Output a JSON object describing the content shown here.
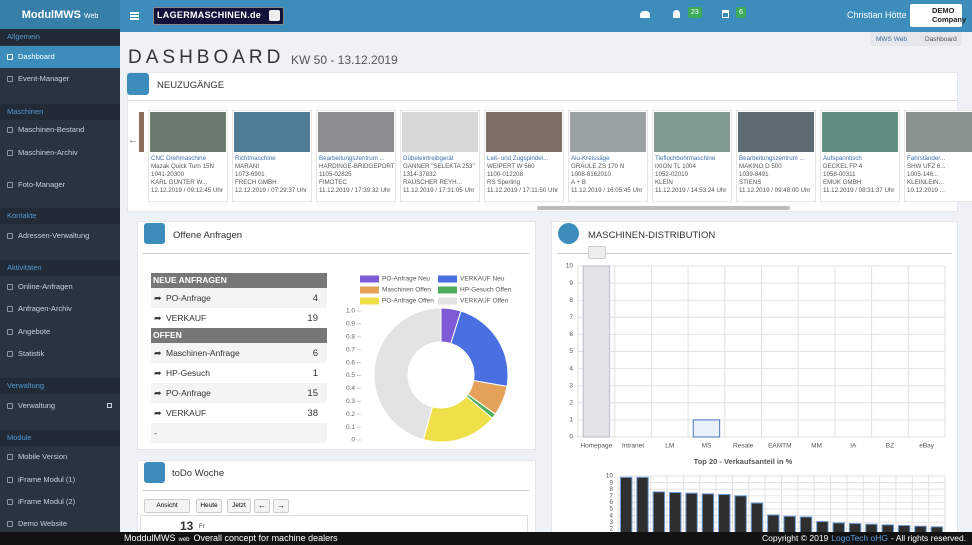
{
  "brand": {
    "name": "ModulMWS",
    "suffix": "Web"
  },
  "sidebar": [
    {
      "section": "Allgemein",
      "items": [
        "Dashboard",
        "Event-Manager"
      ]
    },
    {
      "section": "Maschinen",
      "items": [
        "Maschinen-Bestand",
        "Maschinen-Archiv",
        "Foto-Manager"
      ]
    },
    {
      "section": "Kontakte",
      "items": [
        "Adressen-Verwaltung"
      ]
    },
    {
      "section": "Aktivitäten",
      "items": [
        "Online-Anfragen",
        "Anfragen-Archiv",
        "Angebote",
        "Statistik"
      ]
    },
    {
      "section": "Verwaltung",
      "items": [
        "Verwaltung"
      ]
    },
    {
      "section": "Module",
      "items": [
        "Mobile Version",
        "iFrame Modul (1)",
        "iFrame Modul (2)",
        "Demo Website"
      ]
    }
  ],
  "topbar": {
    "logo": "LAGERMASCHINEN.de",
    "notifications": 23,
    "tasks": 6,
    "user": "Christian Hötte",
    "company_lines": [
      "DEMO",
      "Company"
    ]
  },
  "breadcrumb": [
    "MWS Web",
    "Dashboard"
  ],
  "header": {
    "title": "DASHBOARD",
    "subtitle": "KW 50 - 13.12.2019"
  },
  "neuzugaenge": {
    "title": "NEUZUGÄNGE",
    "cards": [
      {
        "lines": [
          "CNC Drehmaschine",
          "Mazak Quick Turn 15N",
          "1041-20300",
          "KARL GÜNTER W...",
          "12.12.2019 / 09:12:45 Uhr"
        ]
      },
      {
        "lines": [
          "Richtmaschine",
          "MARANI",
          "1073-6901",
          "FRECH GMBH",
          "12.12.2019 / 07:29:37 Uhr"
        ]
      },
      {
        "lines": [
          "Bearbeitungszentrum ...",
          "HARDINGE-BRIDGEPORT V...",
          "1105-02825",
          "FIMOTEC",
          "11.12.2019 / 17:39:32 Uhr"
        ]
      },
      {
        "lines": [
          "Dübeleintreibgerät",
          "GANNER \"SELEKTA 253\"",
          "1314-37832",
          "RAUSCHER REYH...",
          "11.12.2019 / 17:31:05 Uhr"
        ]
      },
      {
        "lines": [
          "Leit- und Zugspindel...",
          "WEIPERT W 560",
          "1100-012208",
          "RS Sperling",
          "11.12.2019 / 17:11:50 Uhr"
        ]
      },
      {
        "lines": [
          "Alu-Kreissäge",
          "GRAULE ZS 170 N",
          "1008-8162010",
          "A + B",
          "11.12.2019 / 16:05:45 Uhr"
        ]
      },
      {
        "lines": [
          "Tieflochbohrmaschine",
          "IXION TL 1004",
          "1052-02010",
          "KLEIN",
          "11.12.2019 / 14:53:24 Uhr"
        ]
      },
      {
        "lines": [
          "Bearbeitungszentrum ...",
          "MAKINO D 500",
          "1039-8491",
          "STIENS",
          "11.12.2019 / 09:48:00 Uhr"
        ]
      },
      {
        "lines": [
          "Aufspanntisch",
          "DECKEL FP 4",
          "1058-00311",
          "EMUK GMBH",
          "11.12.2019 / 08:31:37 Uhr"
        ]
      },
      {
        "lines": [
          "Fahrständer...",
          "SHW UFZ 6...",
          "1005-146...",
          "KLEINLEIN...",
          "10.12.2019 ..."
        ]
      }
    ]
  },
  "anfragen": {
    "title": "Offene Anfragen",
    "groups": [
      {
        "label": "NEUE ANFRAGEN",
        "rows": [
          {
            "name": "PO-Anfrage",
            "count": 4
          },
          {
            "name": "VERKAUF",
            "count": 19
          }
        ]
      },
      {
        "label": "OFFEN",
        "rows": [
          {
            "name": "Maschinen-Anfrage",
            "count": 6
          },
          {
            "name": "HP-Gesuch",
            "count": 1
          },
          {
            "name": "PO-Anfrage",
            "count": 15
          },
          {
            "name": "VERKAUF",
            "count": 38
          }
        ]
      }
    ],
    "empty": "-"
  },
  "distribution": {
    "title": "MASCHINEN-DISTRIBUTION"
  },
  "todo": {
    "title": "toDo Woche",
    "buttons": [
      "Ansicht",
      "Heute",
      "Jetzt"
    ],
    "day": "13",
    "weekday": "Fr"
  },
  "footer": {
    "brand": "ModdulMWS",
    "brand_suffix": "web",
    "tagline": "Overall concept for machine dealers",
    "copyright": "Copyright © 2019",
    "company": "LogoTech oHG",
    "rights": "- All rights reserved."
  },
  "chart_data": [
    {
      "type": "doughnut",
      "categories": [
        "PO-Anfrage Neu",
        "VERKAUF Neu",
        "Maschinen Offen",
        "HP-Gesuch Offen",
        "PO-Anfrage Offen",
        "VERKAUF Offen"
      ],
      "values": [
        4,
        19,
        6,
        1,
        15,
        38
      ],
      "colors": [
        "#7e5bd6",
        "#4a6fe0",
        "#e3a15a",
        "#4cae5b",
        "#efe04a",
        "#e3e3e3"
      ],
      "ylim": [
        0,
        1
      ],
      "yticks": [
        0,
        0.1,
        0.2,
        0.3,
        0.4,
        0.5,
        0.6,
        0.7,
        0.8,
        0.9,
        {
          "value": 1,
          "label": "1.0"
        }
      ]
    },
    {
      "type": "bar",
      "categories": [
        "Homepage",
        "Intranet",
        "LM",
        "MS",
        "Resale",
        "EAMTM",
        "MM",
        "IA",
        "BZ",
        "eBay"
      ],
      "values": [
        10,
        0,
        0,
        1,
        0,
        0,
        0,
        0,
        0,
        0
      ],
      "colors": [
        "#e2e4e8",
        "#e2e4e8",
        "#e2e4e8",
        "#eaf1fb",
        "#e2e4e8",
        "#e2e4e8",
        "#e2e4e8",
        "#e2e4e8",
        "#e2e4e8",
        "#e2e4e8"
      ],
      "border_colors": [
        "#b9bec6",
        "#b9bec6",
        "#b9bec6",
        "#4a78c2",
        "#b9bec6",
        "#b9bec6",
        "#b9bec6",
        "#b9bec6",
        "#b9bec6",
        "#b9bec6"
      ],
      "ylim": [
        0,
        10
      ],
      "yticks": [
        0,
        1,
        2,
        3,
        4,
        5,
        6,
        7,
        8,
        9,
        10
      ],
      "grid": true
    },
    {
      "type": "bar",
      "title": "Top 20 - Verkaufsanteil in %",
      "categories": [
        null,
        null,
        null,
        null,
        null,
        null,
        null,
        null,
        null,
        null,
        null,
        null,
        null,
        null,
        null,
        null,
        null,
        null,
        null,
        null
      ],
      "values": [
        9.8,
        9.8,
        7.6,
        7.5,
        7.4,
        7.3,
        7.2,
        7.0,
        5.9,
        4.1,
        3.9,
        3.8,
        3.1,
        2.9,
        2.8,
        2.7,
        2.6,
        2.5,
        2.4,
        2.3
      ],
      "color": "#2f2f2f",
      "border_color": "#6f9fd8",
      "ylim": [
        0,
        10
      ],
      "yticks": [
        2,
        3,
        4,
        5,
        6,
        7,
        8,
        9,
        10
      ],
      "grid": true
    }
  ]
}
